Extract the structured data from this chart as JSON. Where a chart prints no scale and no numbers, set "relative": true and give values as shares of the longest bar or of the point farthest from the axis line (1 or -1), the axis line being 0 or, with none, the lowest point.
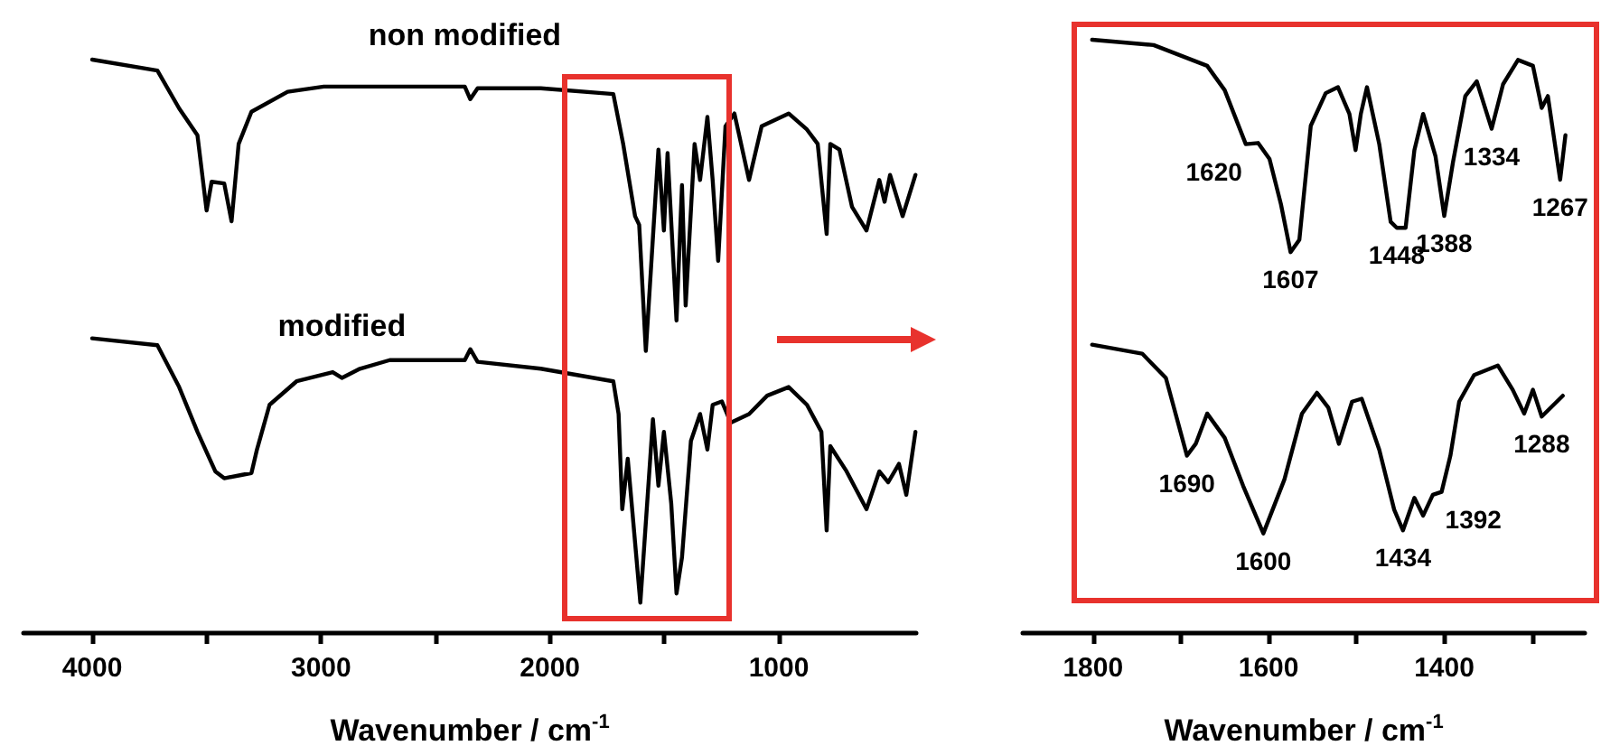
{
  "chart_data": [
    {
      "type": "line",
      "relative": true,
      "marker": "none",
      "line_style": "solid",
      "xlabel": "Wavenumber / cm$^{-1}$",
      "xlim": [
        4300,
        400
      ],
      "xticks": [
        4000,
        {
          "value": 3500,
          "label": null
        },
        3000,
        {
          "value": 2500,
          "label": null
        },
        2000,
        {
          "value": 1500,
          "label": null
        },
        1000
      ],
      "series": [
        {
          "name": "non modified",
          "color": "#000000",
          "x": [
            4000,
            3715,
            3620,
            3540,
            3500,
            3478,
            3423,
            3391,
            3360,
            3304,
            3146,
            2988,
            2372,
            2348,
            2316,
            2040,
            1723,
            1680,
            1628,
            1610,
            1581,
            1526,
            1502,
            1486,
            1447,
            1423,
            1407,
            1368,
            1344,
            1312,
            1289,
            1265,
            1233,
            1194,
            1130,
            1075,
            957,
            877,
            830,
            791,
            775,
            735,
            680,
            617,
            561,
            538,
            514,
            459,
            403
          ],
          "values": [
            1.0,
            0.981,
            0.915,
            0.868,
            0.737,
            0.787,
            0.784,
            0.718,
            0.853,
            0.909,
            0.944,
            0.953,
            0.953,
            0.931,
            0.95,
            0.95,
            0.94,
            0.853,
            0.727,
            0.712,
            0.492,
            0.843,
            0.702,
            0.837,
            0.545,
            0.781,
            0.571,
            0.853,
            0.79,
            0.9,
            0.79,
            0.649,
            0.884,
            0.906,
            0.79,
            0.884,
            0.906,
            0.878,
            0.853,
            0.696,
            0.853,
            0.843,
            0.743,
            0.702,
            0.79,
            0.752,
            0.799,
            0.727,
            0.799
          ]
        },
        {
          "name": "modified",
          "color": "#000000",
          "x": [
            4000,
            3715,
            3620,
            3540,
            3462,
            3423,
            3344,
            3304,
            3280,
            3225,
            3107,
            2949,
            2909,
            2830,
            2700,
            2372,
            2348,
            2316,
            2040,
            1723,
            1700,
            1684,
            1660,
            1605,
            1550,
            1526,
            1502,
            1470,
            1447,
            1423,
            1384,
            1344,
            1312,
            1289,
            1249,
            1210,
            1130,
            1051,
            957,
            877,
            814,
            791,
            775,
            704,
            617,
            561,
            522,
            475,
            443,
            403
          ],
          "values": [
            0.514,
            0.502,
            0.429,
            0.351,
            0.282,
            0.27,
            0.276,
            0.279,
            0.32,
            0.398,
            0.439,
            0.455,
            0.445,
            0.461,
            0.476,
            0.476,
            0.495,
            0.473,
            0.461,
            0.439,
            0.382,
            0.216,
            0.304,
            0.053,
            0.373,
            0.257,
            0.351,
            0.226,
            0.069,
            0.132,
            0.335,
            0.382,
            0.32,
            0.398,
            0.404,
            0.367,
            0.382,
            0.414,
            0.429,
            0.398,
            0.351,
            0.179,
            0.326,
            0.282,
            0.216,
            0.282,
            0.263,
            0.295,
            0.241,
            0.351
          ]
        }
      ]
    },
    {
      "type": "line",
      "relative": true,
      "marker": "none",
      "line_style": "solid",
      "xlabel": "Wavenumber / cm$^{-1}$",
      "xlim": [
        1880,
        1240
      ],
      "xticks": [
        1800,
        {
          "value": 1700,
          "label": null
        },
        1600,
        {
          "value": 1500,
          "label": null
        },
        1400,
        {
          "value": 1300,
          "label": null
        }
      ],
      "series": [
        {
          "color": "#000000",
          "x": [
            1801,
            1731,
            1670,
            1650,
            1626,
            1612,
            1599,
            1586,
            1575,
            1565,
            1552,
            1535,
            1521,
            1508,
            1501,
            1495,
            1488,
            1474,
            1461,
            1454,
            1444,
            1434,
            1424,
            1410,
            1400,
            1390,
            1376,
            1363,
            1346,
            1333,
            1316,
            1299,
            1289,
            1282,
            1268,
            1262
          ],
          "values": [
            1.0,
            0.991,
            0.956,
            0.915,
            0.824,
            0.826,
            0.799,
            0.723,
            0.642,
            0.663,
            0.855,
            0.91,
            0.92,
            0.875,
            0.814,
            0.875,
            0.92,
            0.824,
            0.693,
            0.683,
            0.683,
            0.814,
            0.875,
            0.804,
            0.703,
            0.794,
            0.905,
            0.93,
            0.85,
            0.925,
            0.966,
            0.956,
            0.885,
            0.905,
            0.764,
            0.839
          ]
        },
        {
          "color": "#000000",
          "x": [
            1801,
            1744,
            1717,
            1693,
            1683,
            1670,
            1650,
            1629,
            1606,
            1582,
            1562,
            1545,
            1532,
            1520,
            1505,
            1494,
            1474,
            1457,
            1447,
            1434,
            1424,
            1413,
            1403,
            1393,
            1383,
            1366,
            1339,
            1322,
            1309,
            1299,
            1289,
            1265
          ],
          "values": [
            0.486,
            0.471,
            0.43,
            0.299,
            0.319,
            0.37,
            0.329,
            0.248,
            0.168,
            0.259,
            0.37,
            0.405,
            0.38,
            0.319,
            0.39,
            0.395,
            0.309,
            0.208,
            0.173,
            0.228,
            0.198,
            0.233,
            0.238,
            0.299,
            0.39,
            0.435,
            0.451,
            0.41,
            0.37,
            0.41,
            0.365,
            0.4
          ]
        }
      ],
      "annotations": [
        {
          "text": "1620",
          "x": 1626,
          "y": 0.824
        },
        {
          "text": "1607",
          "x": 1575,
          "y": 0.642
        },
        {
          "text": "1448",
          "x": 1454,
          "y": 0.683
        },
        {
          "text": "1388",
          "x": 1400,
          "y": 0.703
        },
        {
          "text": "1334",
          "x": 1346,
          "y": 0.85
        },
        {
          "text": "1267",
          "x": 1268,
          "y": 0.764
        },
        {
          "text": "1690",
          "x": 1693,
          "y": 0.299
        },
        {
          "text": "1600",
          "x": 1606,
          "y": 0.168
        },
        {
          "text": "1434",
          "x": 1447,
          "y": 0.173
        },
        {
          "text": "1392",
          "x": 1403,
          "y": 0.238
        },
        {
          "text": "1288",
          "x": 1289,
          "y": 0.365
        }
      ]
    }
  ]
}
